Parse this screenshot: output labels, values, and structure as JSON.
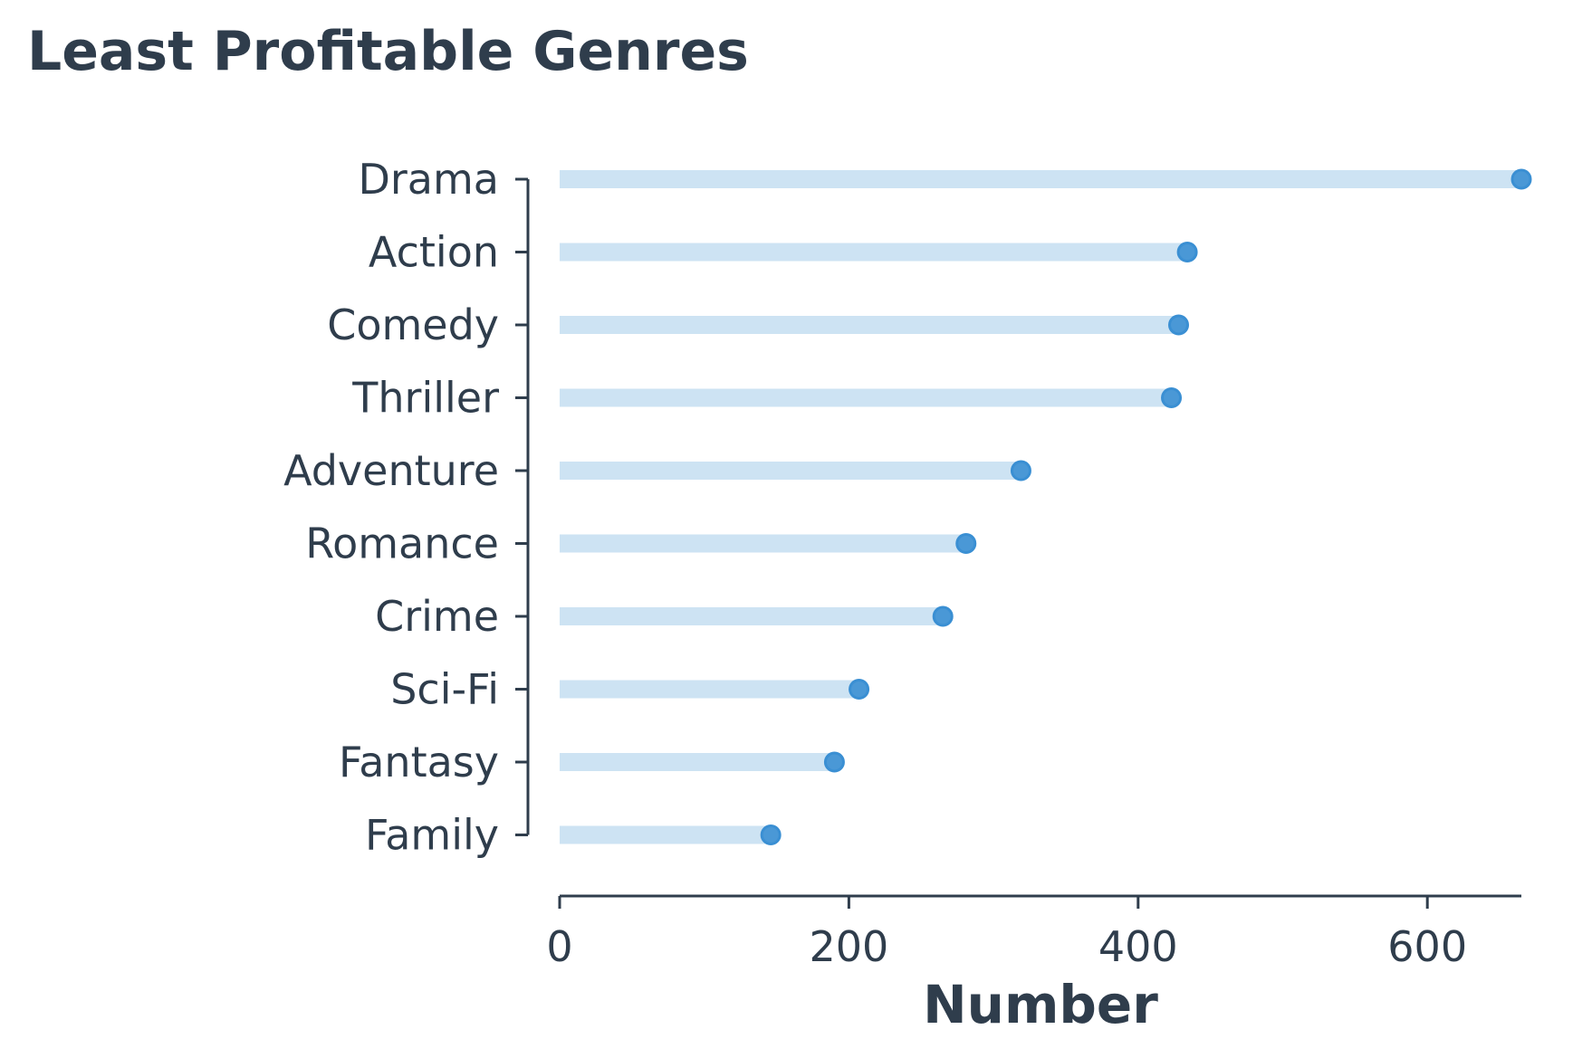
{
  "chart_data": {
    "type": "lollipop",
    "title": "Least Profitable Genres",
    "xlabel": "Number",
    "ylabel": "",
    "xlim": [
      0,
      665
    ],
    "xticks": [
      0,
      200,
      400,
      600
    ],
    "grid": false,
    "legend": "none",
    "categories": [
      "Drama",
      "Action",
      "Comedy",
      "Thriller",
      "Adventure",
      "Romance",
      "Crime",
      "Sci-Fi",
      "Fantasy",
      "Family"
    ],
    "values": [
      665,
      434,
      428,
      423,
      319,
      281,
      265,
      207,
      190,
      146
    ]
  },
  "colors": {
    "stem": "#cde3f3",
    "marker_fill": "#4a98d6",
    "marker_edge": "#3a8fd3",
    "text": "#2f3d4c",
    "axis": "#2f3d4c"
  }
}
